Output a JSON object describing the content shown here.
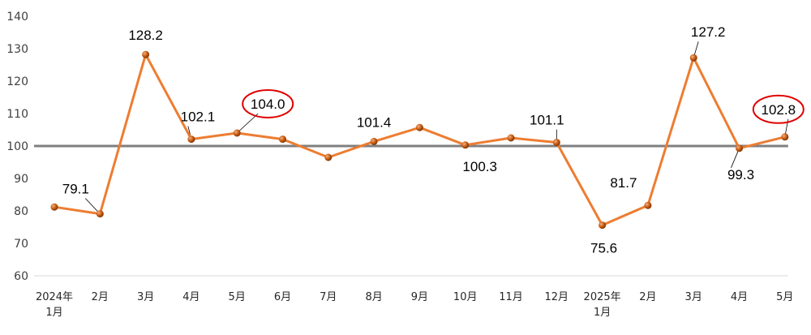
{
  "chart_data": {
    "type": "line",
    "categories": [
      "2024年\n1月",
      "2月",
      "3月",
      "4月",
      "5月",
      "6月",
      "7月",
      "8月",
      "9月",
      "10月",
      "11月",
      "12月",
      "2025年\n1月",
      "2月",
      "3月",
      "4月",
      "5月"
    ],
    "series": [
      {
        "values": [
          81.2,
          79.1,
          128.2,
          102.1,
          104.0,
          102.1,
          96.5,
          101.4,
          105.7,
          100.3,
          102.5,
          101.1,
          75.6,
          81.7,
          127.2,
          99.3,
          102.8
        ],
        "color": "#ED7D31",
        "marker_color": "#C55A11"
      }
    ],
    "data_labels": [
      {
        "index": 1,
        "text": "79.1",
        "circled": false
      },
      {
        "index": 2,
        "text": "128.2",
        "circled": false
      },
      {
        "index": 3,
        "text": "102.1",
        "circled": false
      },
      {
        "index": 4,
        "text": "104.0",
        "circled": true
      },
      {
        "index": 7,
        "text": "101.4",
        "circled": false
      },
      {
        "index": 9,
        "text": "100.3",
        "circled": false
      },
      {
        "index": 11,
        "text": "101.1",
        "circled": false
      },
      {
        "index": 12,
        "text": "75.6",
        "circled": false
      },
      {
        "index": 13,
        "text": "81.7",
        "circled": false
      },
      {
        "index": 14,
        "text": "127.2",
        "circled": false
      },
      {
        "index": 15,
        "text": "99.3",
        "circled": false
      },
      {
        "index": 16,
        "text": "102.8",
        "circled": true
      }
    ],
    "yticks": [
      "60",
      "70",
      "80",
      "90",
      "100",
      "110",
      "120",
      "130",
      "140"
    ],
    "ylim": [
      60,
      140
    ],
    "reference_line": {
      "value": 100,
      "color": "#7F7F7F"
    },
    "highlight_color": "#E00000",
    "grid": false,
    "legend": "none"
  }
}
